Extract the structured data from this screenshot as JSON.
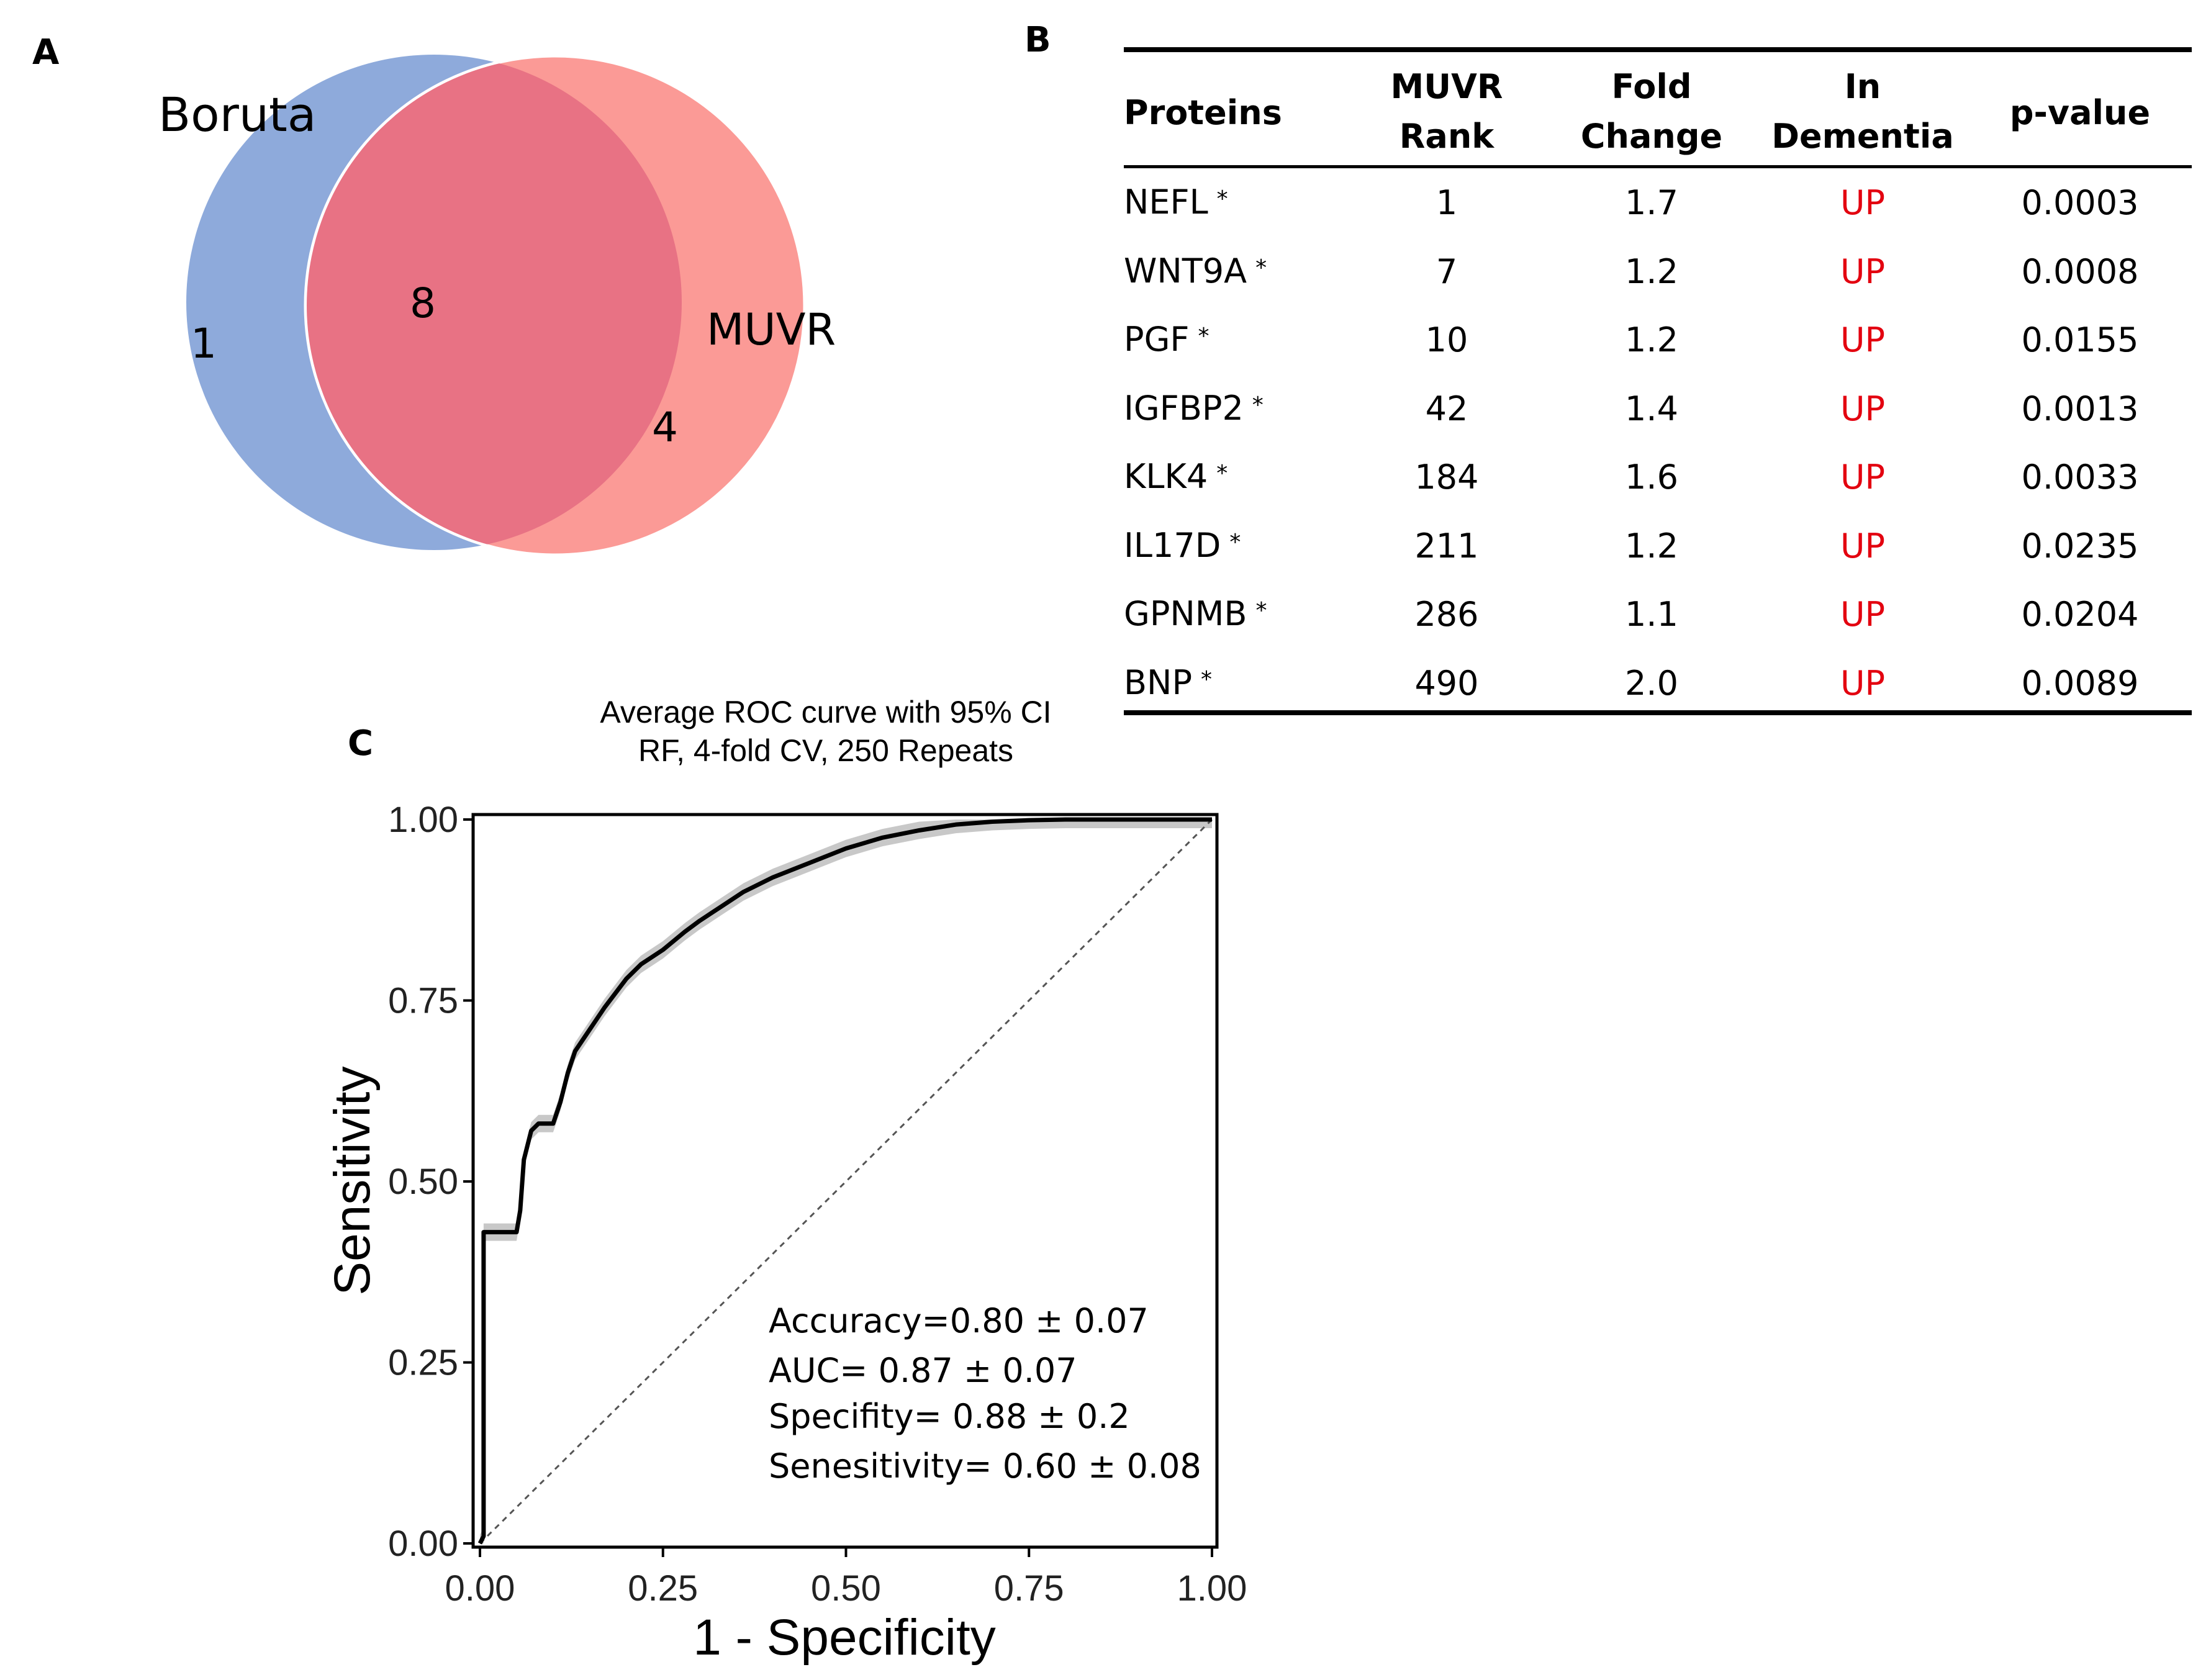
{
  "panels": {
    "a": {
      "label": "A"
    },
    "b": {
      "label": "B"
    },
    "c": {
      "label": "C"
    }
  },
  "venn": {
    "left_label": "Boruta",
    "right_label": "MUVR",
    "left_only": "1",
    "overlap": "8",
    "right_only": "4",
    "colors": {
      "left": "#8eaadb",
      "right": "#fb9a96",
      "overlap": "#e87284"
    }
  },
  "table": {
    "headers": {
      "proteins": "Proteins",
      "rank_1": "MUVR",
      "rank_2": "Rank",
      "fold_1": "Fold",
      "fold_2": "Change",
      "dem_1": "In",
      "dem_2": "Dementia",
      "pvalue": "p-value"
    },
    "marker": "*",
    "rows": [
      {
        "protein": "NEFL",
        "rank": "1",
        "fold": "1.7",
        "direction": "UP",
        "pvalue": "0.0003"
      },
      {
        "protein": "WNT9A",
        "rank": "7",
        "fold": "1.2",
        "direction": "UP",
        "pvalue": "0.0008"
      },
      {
        "protein": "PGF",
        "rank": "10",
        "fold": "1.2",
        "direction": "UP",
        "pvalue": "0.0155"
      },
      {
        "protein": "IGFBP2",
        "rank": "42",
        "fold": "1.4",
        "direction": "UP",
        "pvalue": "0.0013"
      },
      {
        "protein": "KLK4",
        "rank": "184",
        "fold": "1.6",
        "direction": "UP",
        "pvalue": "0.0033"
      },
      {
        "protein": "IL17D",
        "rank": "211",
        "fold": "1.2",
        "direction": "UP",
        "pvalue": "0.0235"
      },
      {
        "protein": "GPNMB",
        "rank": "286",
        "fold": "1.1",
        "direction": "UP",
        "pvalue": "0.0204"
      },
      {
        "protein": "BNP",
        "rank": "490",
        "fold": "2.0",
        "direction": "UP",
        "pvalue": "0.0089"
      }
    ],
    "up_color": "#e3000f"
  },
  "chart_data": {
    "type": "line",
    "title": "Average ROC curve with 95% CI",
    "subtitle": "RF, 4-fold CV, 250 Repeats",
    "xlabel": "1 - Specificity",
    "ylabel": "Sensitivity",
    "xlim": [
      0,
      1
    ],
    "ylim": [
      0,
      1
    ],
    "xticks": [
      "0.00",
      "0.25",
      "0.50",
      "0.75",
      "1.00"
    ],
    "yticks": [
      "0.00",
      "0.25",
      "0.50",
      "0.75",
      "1.00"
    ],
    "series": [
      {
        "name": "Average ROC",
        "x": [
          0,
          0.005,
          0.005,
          0.05,
          0.055,
          0.06,
          0.07,
          0.08,
          0.1,
          0.11,
          0.12,
          0.13,
          0.15,
          0.17,
          0.2,
          0.22,
          0.25,
          0.28,
          0.3,
          0.33,
          0.36,
          0.4,
          0.45,
          0.5,
          0.55,
          0.6,
          0.65,
          0.7,
          0.75,
          0.8,
          0.9,
          1.0
        ],
        "y": [
          0,
          0.01,
          0.43,
          0.43,
          0.46,
          0.53,
          0.57,
          0.58,
          0.58,
          0.61,
          0.65,
          0.68,
          0.71,
          0.74,
          0.78,
          0.8,
          0.82,
          0.845,
          0.86,
          0.88,
          0.9,
          0.92,
          0.94,
          0.96,
          0.975,
          0.985,
          0.993,
          0.997,
          0.999,
          1.0,
          1.0,
          1.0
        ]
      },
      {
        "name": "Reference",
        "x": [
          0,
          1
        ],
        "y": [
          0,
          1
        ]
      }
    ],
    "ci_band": {
      "upper_offset": 0.012,
      "lower_offset": 0.012
    },
    "annotations": [
      "Accuracy=0.80 ± 0.07",
      "AUC= 0.87 ± 0.07",
      "Specifity= 0.88 ±  0.2",
      "Senesitivity= 0.60 ±  0.08"
    ]
  }
}
